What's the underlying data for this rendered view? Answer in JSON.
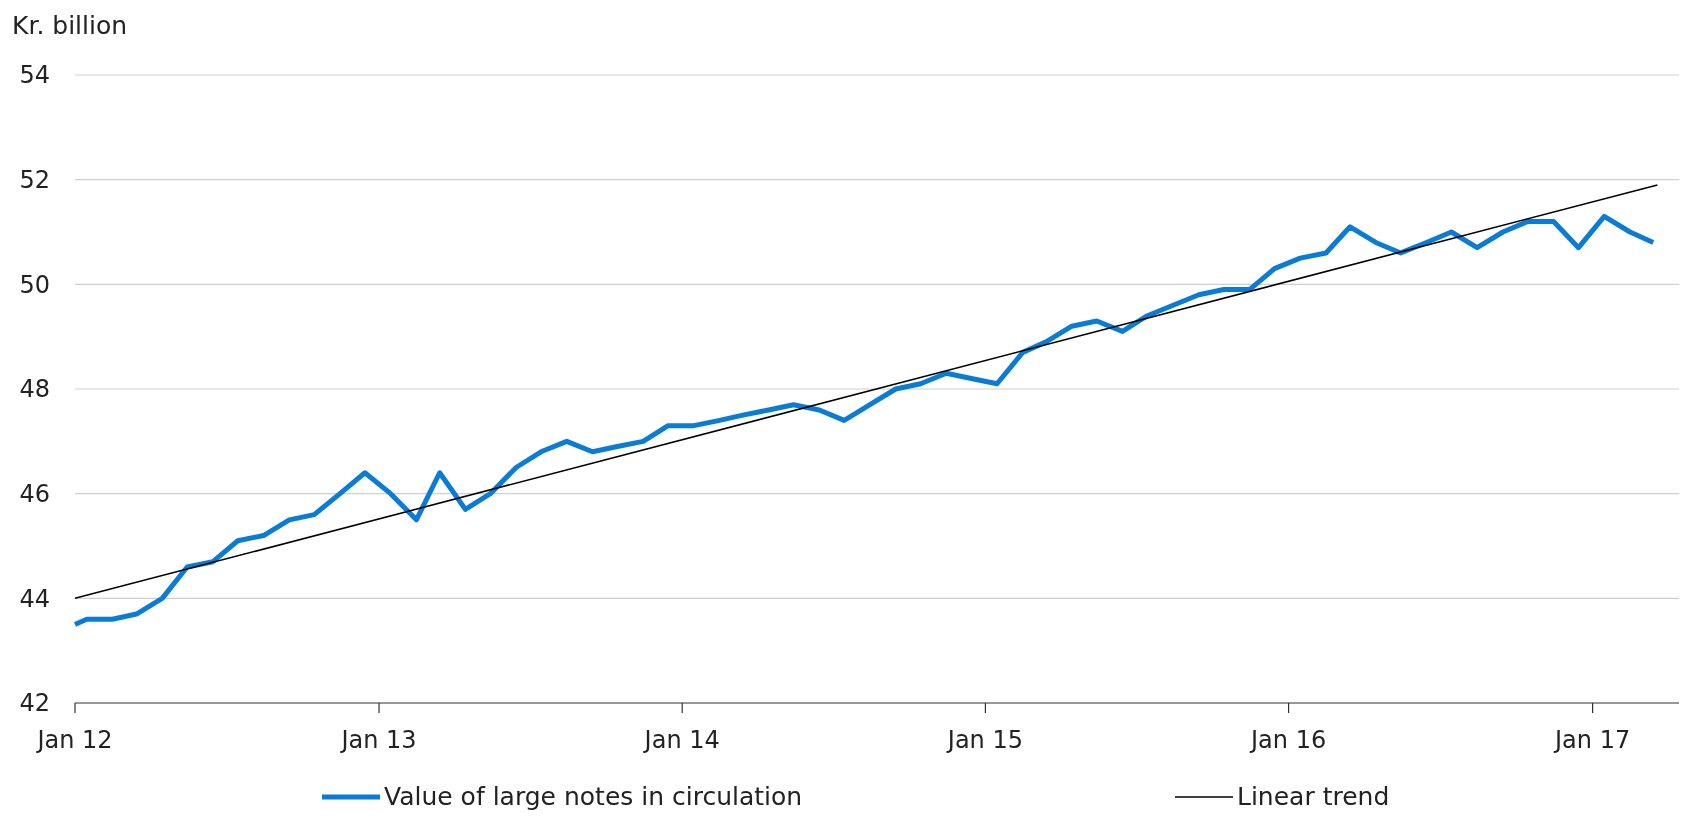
{
  "chart_data": {
    "type": "line",
    "ylabel": "Kr. billion",
    "xlim": [
      "2012-01-01",
      "2017-04-15"
    ],
    "xticks": [
      {
        "value": "2012-01-01",
        "label": "Jan 12"
      },
      {
        "value": "2013-01-01",
        "label": "Jan 13"
      },
      {
        "value": "2014-01-01",
        "label": "Jan 14"
      },
      {
        "value": "2015-01-01",
        "label": "Jan 15"
      },
      {
        "value": "2016-01-01",
        "label": "Jan 16"
      },
      {
        "value": "2017-01-01",
        "label": "Jan 17"
      }
    ],
    "ylim": [
      42,
      54
    ],
    "yticks": [
      42,
      44,
      46,
      48,
      50,
      52,
      54
    ],
    "grid": "y",
    "legend": "bottom",
    "series": [
      {
        "name": "Value of large notes in circulation",
        "color": "#0a7cd6",
        "x": [
          "2012-01-01",
          "2012-01-15",
          "2012-02-15",
          "2012-03-15",
          "2012-04-15",
          "2012-05-15",
          "2012-06-15",
          "2012-07-15",
          "2012-08-15",
          "2012-09-15",
          "2012-10-15",
          "2012-11-15",
          "2012-12-15",
          "2013-01-15",
          "2013-02-15",
          "2013-03-15",
          "2013-04-15",
          "2013-05-15",
          "2013-06-15",
          "2013-07-15",
          "2013-08-15",
          "2013-09-15",
          "2013-10-15",
          "2013-11-15",
          "2013-12-15",
          "2014-01-15",
          "2014-02-15",
          "2014-03-15",
          "2014-04-15",
          "2014-05-15",
          "2014-06-15",
          "2014-07-15",
          "2014-08-15",
          "2014-09-15",
          "2014-10-15",
          "2014-11-15",
          "2014-12-15",
          "2015-01-15",
          "2015-02-15",
          "2015-03-15",
          "2015-04-15",
          "2015-05-15",
          "2015-06-15",
          "2015-07-15",
          "2015-08-15",
          "2015-09-15",
          "2015-10-15",
          "2015-11-15",
          "2015-12-15",
          "2016-01-15",
          "2016-02-15",
          "2016-03-15",
          "2016-04-15",
          "2016-05-15",
          "2016-06-15",
          "2016-07-15",
          "2016-08-15",
          "2016-09-15",
          "2016-10-15",
          "2016-11-15",
          "2016-12-15",
          "2017-01-15",
          "2017-02-15",
          "2017-03-15"
        ],
        "values": [
          43.5,
          43.6,
          43.6,
          43.7,
          44.0,
          44.6,
          44.7,
          45.1,
          45.2,
          45.5,
          45.6,
          46.0,
          46.4,
          46.0,
          45.5,
          46.4,
          45.7,
          46.0,
          46.5,
          46.8,
          47.0,
          46.8,
          46.9,
          47.0,
          47.3,
          47.3,
          47.4,
          47.5,
          47.6,
          47.7,
          47.6,
          47.4,
          47.7,
          48.0,
          48.1,
          48.3,
          48.2,
          48.1,
          48.7,
          48.9,
          49.2,
          49.3,
          49.1,
          49.4,
          49.6,
          49.8,
          49.9,
          49.9,
          50.3,
          50.5,
          50.6,
          51.1,
          50.8,
          50.6,
          50.8,
          51.0,
          50.7,
          51.0,
          51.2,
          51.2,
          50.7,
          51.3,
          51.0,
          50.8
        ]
      },
      {
        "name": "Linear trend",
        "color": "#000000",
        "x": [
          "2012-01-01",
          "2017-03-20"
        ],
        "values": [
          44.0,
          51.9
        ]
      }
    ]
  }
}
